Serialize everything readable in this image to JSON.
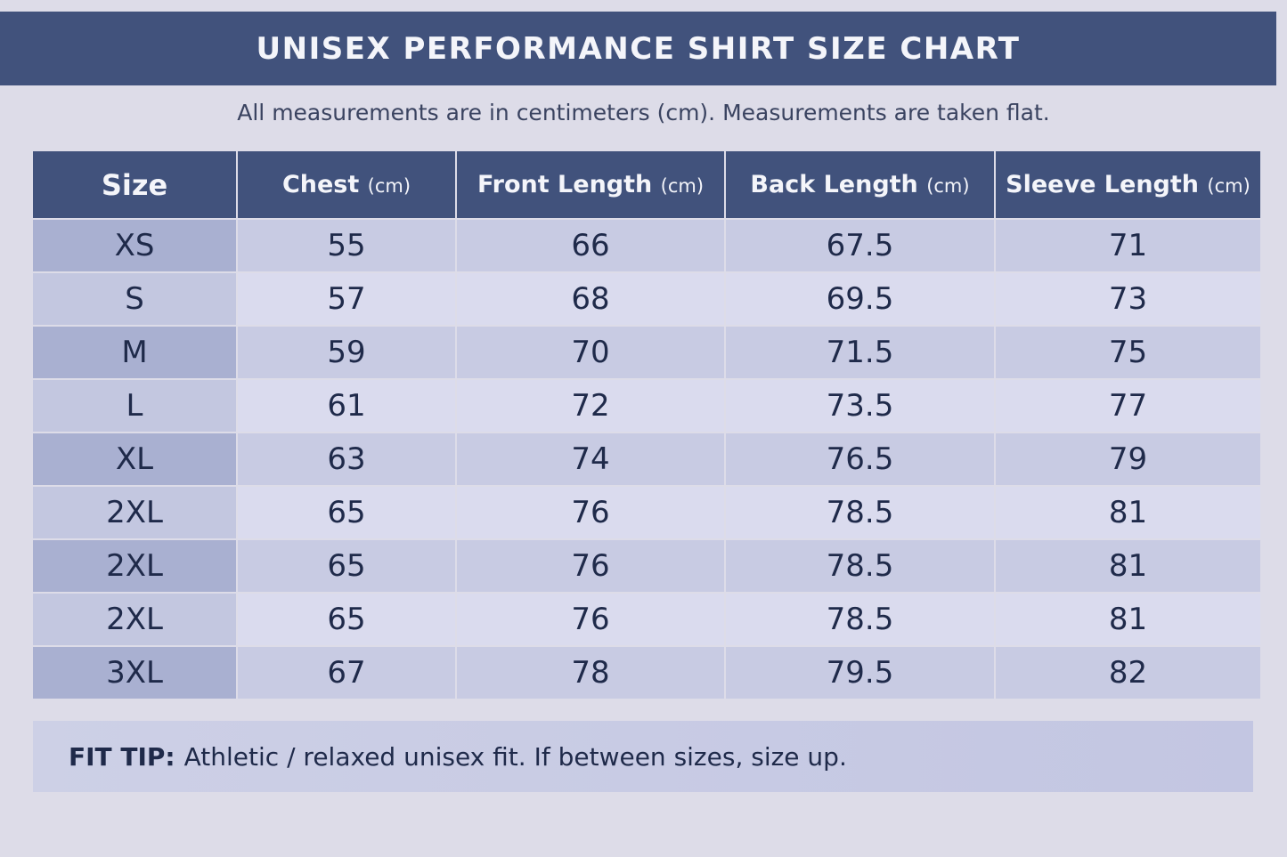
{
  "title": "UNISEX PERFORMANCE SHIRT SIZE CHART",
  "subtitle": "All measurements are in centimeters (cm). Measurements are taken flat.",
  "table": {
    "headers": [
      {
        "label": "Size",
        "unit": ""
      },
      {
        "label": "Chest",
        "unit": "(cm)"
      },
      {
        "label": "Front Length",
        "unit": "(cm)"
      },
      {
        "label": "Back Length",
        "unit": "(cm)"
      },
      {
        "label": "Sleeve Length",
        "unit": "(cm)"
      }
    ],
    "rows": [
      [
        "XS",
        "55",
        "66",
        "67.5",
        "71"
      ],
      [
        "S",
        "57",
        "68",
        "69.5",
        "73"
      ],
      [
        "M",
        "59",
        "70",
        "71.5",
        "75"
      ],
      [
        "L",
        "61",
        "72",
        "73.5",
        "77"
      ],
      [
        "XL",
        "63",
        "74",
        "76.5",
        "79"
      ],
      [
        "2XL",
        "65",
        "76",
        "78.5",
        "81"
      ],
      [
        "2XL",
        "65",
        "76",
        "78.5",
        "81"
      ],
      [
        "2XL",
        "65",
        "76",
        "78.5",
        "81"
      ],
      [
        "3XL",
        "67",
        "78",
        "79.5",
        "82"
      ]
    ]
  },
  "fit_tip": {
    "label": "FIT TIP:",
    "text": "Athletic / relaxed unisex fit. If between sizes, size up."
  },
  "colors": {
    "header": "#41527c",
    "background": "#dddce8",
    "size_column": "#a9b0d1"
  }
}
